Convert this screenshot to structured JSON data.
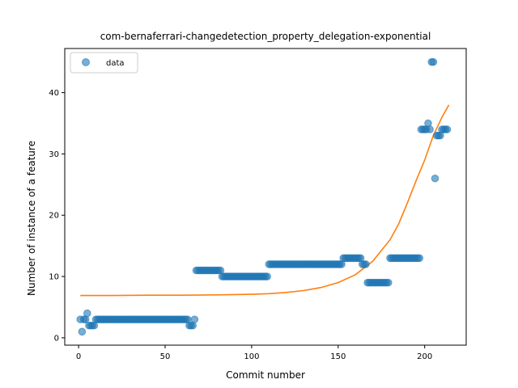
{
  "chart_data": {
    "type": "scatter",
    "title": "com-bernaferrari-changedetection_property_delegation-exponential",
    "xlabel": "Commit number",
    "ylabel": "Number of instance of a feature",
    "xlim": [
      -8,
      224
    ],
    "ylim": [
      -1.2,
      47.2
    ],
    "xticks": [
      0,
      50,
      100,
      150,
      200
    ],
    "yticks": [
      0,
      10,
      20,
      30,
      40
    ],
    "grid": false,
    "legend": {
      "location": "upper-left",
      "entries": [
        "data"
      ]
    },
    "colors": {
      "data": "#1f77b4",
      "fit": "#ff7f0e",
      "axes": "#000000"
    },
    "series": [
      {
        "name": "data",
        "kind": "scatter",
        "points": [
          [
            1,
            3
          ],
          [
            2,
            1
          ],
          [
            3,
            3
          ],
          [
            4,
            3
          ],
          [
            5,
            4
          ],
          [
            6,
            2
          ],
          [
            7,
            2
          ],
          [
            8,
            2
          ],
          [
            9,
            2
          ],
          [
            10,
            3
          ],
          [
            11,
            3
          ],
          [
            12,
            3
          ],
          [
            13,
            3
          ],
          [
            14,
            3
          ],
          [
            15,
            3
          ],
          [
            16,
            3
          ],
          [
            17,
            3
          ],
          [
            18,
            3
          ],
          [
            19,
            3
          ],
          [
            20,
            3
          ],
          [
            21,
            3
          ],
          [
            22,
            3
          ],
          [
            23,
            3
          ],
          [
            24,
            3
          ],
          [
            25,
            3
          ],
          [
            26,
            3
          ],
          [
            27,
            3
          ],
          [
            28,
            3
          ],
          [
            29,
            3
          ],
          [
            30,
            3
          ],
          [
            31,
            3
          ],
          [
            32,
            3
          ],
          [
            33,
            3
          ],
          [
            34,
            3
          ],
          [
            35,
            3
          ],
          [
            36,
            3
          ],
          [
            37,
            3
          ],
          [
            38,
            3
          ],
          [
            39,
            3
          ],
          [
            40,
            3
          ],
          [
            41,
            3
          ],
          [
            42,
            3
          ],
          [
            43,
            3
          ],
          [
            44,
            3
          ],
          [
            45,
            3
          ],
          [
            46,
            3
          ],
          [
            47,
            3
          ],
          [
            48,
            3
          ],
          [
            49,
            3
          ],
          [
            50,
            3
          ],
          [
            51,
            3
          ],
          [
            52,
            3
          ],
          [
            53,
            3
          ],
          [
            54,
            3
          ],
          [
            55,
            3
          ],
          [
            56,
            3
          ],
          [
            57,
            3
          ],
          [
            58,
            3
          ],
          [
            59,
            3
          ],
          [
            60,
            3
          ],
          [
            61,
            3
          ],
          [
            62,
            3
          ],
          [
            63,
            3
          ],
          [
            64,
            2
          ],
          [
            65,
            2
          ],
          [
            66,
            2
          ],
          [
            67,
            3
          ],
          [
            68,
            11
          ],
          [
            69,
            11
          ],
          [
            70,
            11
          ],
          [
            71,
            11
          ],
          [
            72,
            11
          ],
          [
            73,
            11
          ],
          [
            74,
            11
          ],
          [
            75,
            11
          ],
          [
            76,
            11
          ],
          [
            77,
            11
          ],
          [
            78,
            11
          ],
          [
            79,
            11
          ],
          [
            80,
            11
          ],
          [
            81,
            11
          ],
          [
            82,
            11
          ],
          [
            83,
            10
          ],
          [
            84,
            10
          ],
          [
            85,
            10
          ],
          [
            86,
            10
          ],
          [
            87,
            10
          ],
          [
            88,
            10
          ],
          [
            89,
            10
          ],
          [
            90,
            10
          ],
          [
            91,
            10
          ],
          [
            92,
            10
          ],
          [
            93,
            10
          ],
          [
            94,
            10
          ],
          [
            95,
            10
          ],
          [
            96,
            10
          ],
          [
            97,
            10
          ],
          [
            98,
            10
          ],
          [
            99,
            10
          ],
          [
            100,
            10
          ],
          [
            101,
            10
          ],
          [
            102,
            10
          ],
          [
            103,
            10
          ],
          [
            104,
            10
          ],
          [
            105,
            10
          ],
          [
            106,
            10
          ],
          [
            107,
            10
          ],
          [
            108,
            10
          ],
          [
            109,
            10
          ],
          [
            110,
            12
          ],
          [
            111,
            12
          ],
          [
            112,
            12
          ],
          [
            113,
            12
          ],
          [
            114,
            12
          ],
          [
            115,
            12
          ],
          [
            116,
            12
          ],
          [
            117,
            12
          ],
          [
            118,
            12
          ],
          [
            119,
            12
          ],
          [
            120,
            12
          ],
          [
            121,
            12
          ],
          [
            122,
            12
          ],
          [
            123,
            12
          ],
          [
            124,
            12
          ],
          [
            125,
            12
          ],
          [
            126,
            12
          ],
          [
            127,
            12
          ],
          [
            128,
            12
          ],
          [
            129,
            12
          ],
          [
            130,
            12
          ],
          [
            131,
            12
          ],
          [
            132,
            12
          ],
          [
            133,
            12
          ],
          [
            134,
            12
          ],
          [
            135,
            12
          ],
          [
            136,
            12
          ],
          [
            137,
            12
          ],
          [
            138,
            12
          ],
          [
            139,
            12
          ],
          [
            140,
            12
          ],
          [
            141,
            12
          ],
          [
            142,
            12
          ],
          [
            143,
            12
          ],
          [
            144,
            12
          ],
          [
            145,
            12
          ],
          [
            146,
            12
          ],
          [
            147,
            12
          ],
          [
            148,
            12
          ],
          [
            149,
            12
          ],
          [
            150,
            12
          ],
          [
            151,
            12
          ],
          [
            152,
            12
          ],
          [
            153,
            13
          ],
          [
            154,
            13
          ],
          [
            155,
            13
          ],
          [
            156,
            13
          ],
          [
            157,
            13
          ],
          [
            158,
            13
          ],
          [
            159,
            13
          ],
          [
            160,
            13
          ],
          [
            161,
            13
          ],
          [
            162,
            13
          ],
          [
            163,
            13
          ],
          [
            164,
            12
          ],
          [
            165,
            12
          ],
          [
            166,
            12
          ],
          [
            167,
            9
          ],
          [
            168,
            9
          ],
          [
            169,
            9
          ],
          [
            170,
            9
          ],
          [
            171,
            9
          ],
          [
            172,
            9
          ],
          [
            173,
            9
          ],
          [
            174,
            9
          ],
          [
            175,
            9
          ],
          [
            176,
            9
          ],
          [
            177,
            9
          ],
          [
            178,
            9
          ],
          [
            179,
            9
          ],
          [
            180,
            13
          ],
          [
            181,
            13
          ],
          [
            182,
            13
          ],
          [
            183,
            13
          ],
          [
            184,
            13
          ],
          [
            185,
            13
          ],
          [
            186,
            13
          ],
          [
            187,
            13
          ],
          [
            188,
            13
          ],
          [
            189,
            13
          ],
          [
            190,
            13
          ],
          [
            191,
            13
          ],
          [
            192,
            13
          ],
          [
            193,
            13
          ],
          [
            194,
            13
          ],
          [
            195,
            13
          ],
          [
            196,
            13
          ],
          [
            197,
            13
          ],
          [
            198,
            34
          ],
          [
            199,
            34
          ],
          [
            200,
            34
          ],
          [
            201,
            34
          ],
          [
            202,
            35
          ],
          [
            203,
            34
          ],
          [
            204,
            45
          ],
          [
            205,
            45
          ],
          [
            206,
            26
          ],
          [
            207,
            33
          ],
          [
            208,
            33
          ],
          [
            209,
            33
          ],
          [
            210,
            34
          ],
          [
            211,
            34
          ],
          [
            212,
            34
          ],
          [
            213,
            34
          ]
        ]
      },
      {
        "kind": "line",
        "points": [
          [
            1,
            6.9
          ],
          [
            20,
            6.9
          ],
          [
            40,
            6.95
          ],
          [
            60,
            6.95
          ],
          [
            80,
            7.0
          ],
          [
            100,
            7.1
          ],
          [
            110,
            7.2
          ],
          [
            120,
            7.4
          ],
          [
            130,
            7.7
          ],
          [
            140,
            8.2
          ],
          [
            150,
            9.0
          ],
          [
            160,
            10.3
          ],
          [
            170,
            12.5
          ],
          [
            180,
            16.0
          ],
          [
            185,
            18.6
          ],
          [
            190,
            22.0
          ],
          [
            195,
            25.6
          ],
          [
            200,
            29.0
          ],
          [
            205,
            33.0
          ],
          [
            210,
            36.0
          ],
          [
            214,
            38.0
          ]
        ]
      }
    ]
  }
}
